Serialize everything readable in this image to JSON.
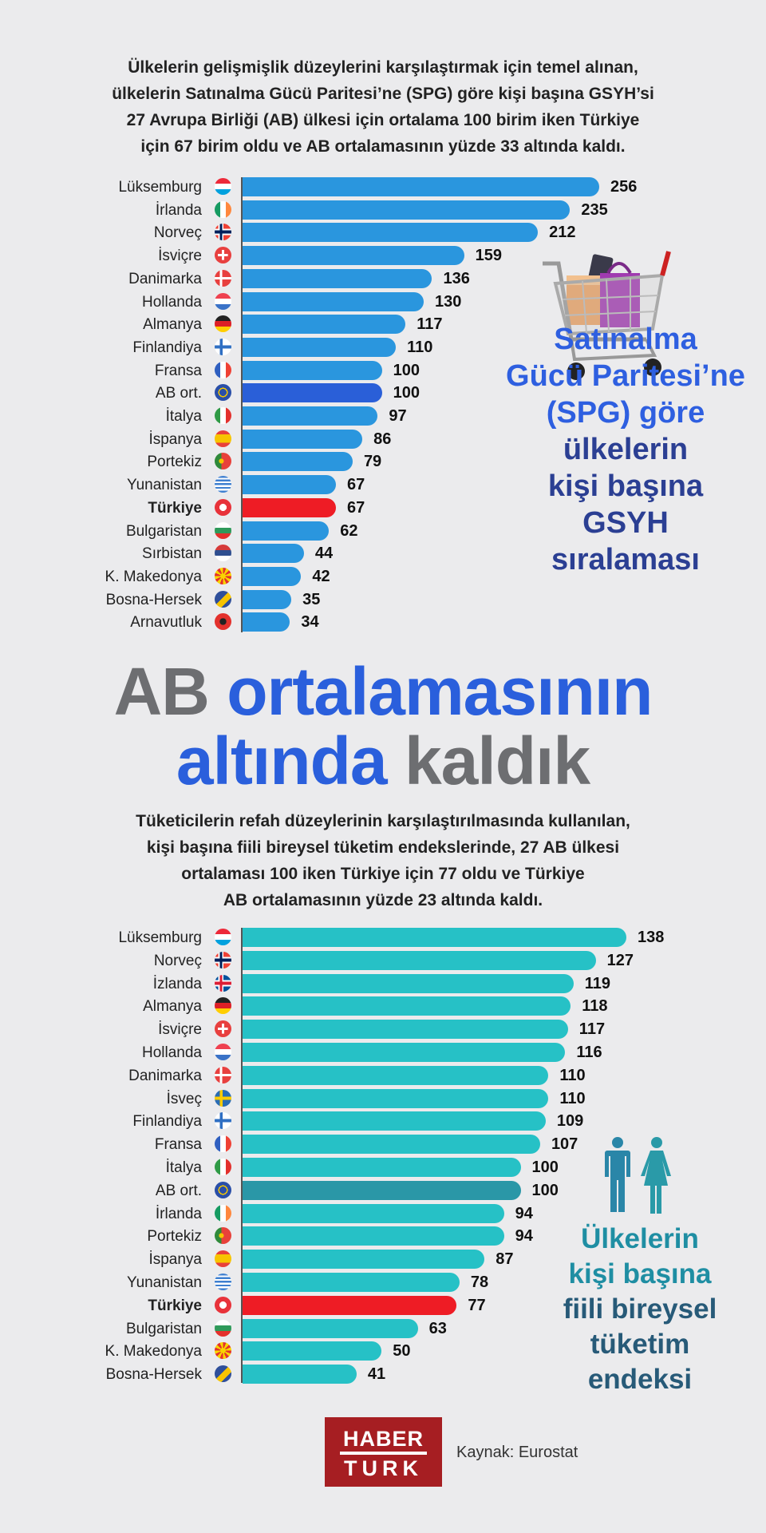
{
  "intro1": [
    "Ülkelerin gelişmişlik düzeylerini karşılaştırmak için temel alınan,",
    "ülkelerin Satınalma Gücü Paritesi’ne (SPG) göre kişi başına GSYH’si",
    "27 Avrupa Birliği (AB) ülkesi için ortalama 100 birim iken Türkiye",
    "için 67 birim oldu ve AB ortalamasının yüzde 33 altında kaldı."
  ],
  "headline": {
    "line1_gray": "AB",
    "line1_blue": "ortalamasının",
    "line2_blue": "altında",
    "line2_gray": "kaldık"
  },
  "intro2": [
    "Tüketicilerin refah düzeylerinin karşılaştırılmasında kullanılan,",
    "kişi başına fiili bireysel tüketim endekslerinde, 27 AB ülkesi",
    "ortalaması 100 iken Türkiye için 77 oldu ve Türkiye",
    "AB ortalamasının yüzde 23 altında kaldı."
  ],
  "chart_data": [
    {
      "type": "bar",
      "orientation": "horizontal",
      "title_lines": [
        "Satınalma",
        "Gücü Paritesi’ne",
        "(SPG) göre",
        "ülkelerin",
        "kişi başına",
        "GSYH",
        "sıralaması"
      ],
      "title_colors": [
        "#2e5fe0",
        "#2e5fe0",
        "#2e5fe0",
        "#2b3f93",
        "#2b3f93",
        "#2b3f93",
        "#2b3f93"
      ],
      "categories": [
        "Lüksemburg",
        "İrlanda",
        "Norveç",
        "İsviçre",
        "Danimarka",
        "Hollanda",
        "Almanya",
        "Finlandiya",
        "Fransa",
        "AB ort.",
        "İtalya",
        "İspanya",
        "Portekiz",
        "Yunanistan",
        "Türkiye",
        "Bulgaristan",
        "Sırbistan",
        "K. Makedonya",
        "Bosna-Hersek",
        "Arnavutluk"
      ],
      "values": [
        256,
        235,
        212,
        159,
        136,
        130,
        117,
        110,
        100,
        100,
        97,
        86,
        79,
        67,
        67,
        62,
        44,
        42,
        35,
        34
      ],
      "flags": [
        "flag-lu",
        "flag-ie",
        "flag-no",
        "flag-ch",
        "flag-dk",
        "flag-nl",
        "flag-de",
        "flag-fi",
        "flag-fr",
        "flag-eu",
        "flag-it",
        "flag-es",
        "flag-pt",
        "flag-gr",
        "flag-tr",
        "flag-bg",
        "flag-rs",
        "flag-mk",
        "flag-ba",
        "flag-al"
      ],
      "bar_color": "#2a96de",
      "highlight_colors": {
        "AB ort.": "#2a5fd8",
        "Türkiye": "#ee1c25"
      },
      "bold_category": "Türkiye",
      "xlim": [
        0,
        256
      ],
      "icon": "shopping-cart-icon"
    },
    {
      "type": "bar",
      "orientation": "horizontal",
      "title_lines": [
        "Ülkelerin",
        "kişi başına",
        "fiili bireysel",
        "tüketim",
        "endeksi"
      ],
      "title_colors": [
        "#1f8ea3",
        "#1f8ea3",
        "#275a78",
        "#275a78",
        "#275a78"
      ],
      "categories": [
        "Lüksemburg",
        "Norveç",
        "İzlanda",
        "Almanya",
        "İsviçre",
        "Hollanda",
        "Danimarka",
        "İsveç",
        "Finlandiya",
        "Fransa",
        "İtalya",
        "AB ort.",
        "İrlanda",
        "Portekiz",
        "İspanya",
        "Yunanistan",
        "Türkiye",
        "Bulgaristan",
        "K. Makedonya",
        "Bosna-Hersek"
      ],
      "values": [
        138,
        127,
        119,
        118,
        117,
        116,
        110,
        110,
        109,
        107,
        100,
        100,
        94,
        94,
        87,
        78,
        77,
        63,
        50,
        41
      ],
      "flags": [
        "flag-lu",
        "flag-no",
        "flag-is",
        "flag-de",
        "flag-ch",
        "flag-nl",
        "flag-dk",
        "flag-se",
        "flag-fi",
        "flag-fr",
        "flag-it",
        "flag-eu",
        "flag-ie",
        "flag-pt",
        "flag-es",
        "flag-gr",
        "flag-tr",
        "flag-bg",
        "flag-mk",
        "flag-ba"
      ],
      "bar_color": "#26c1c6",
      "highlight_colors": {
        "AB ort.": "#2a97a7",
        "Türkiye": "#ee1c25"
      },
      "bold_category": "Türkiye",
      "xlim": [
        0,
        138
      ],
      "icon": "people-icon"
    }
  ],
  "footer": {
    "logo_line1": "HABER",
    "logo_line2": "TURK",
    "source": "Kaynak: Eurostat"
  }
}
